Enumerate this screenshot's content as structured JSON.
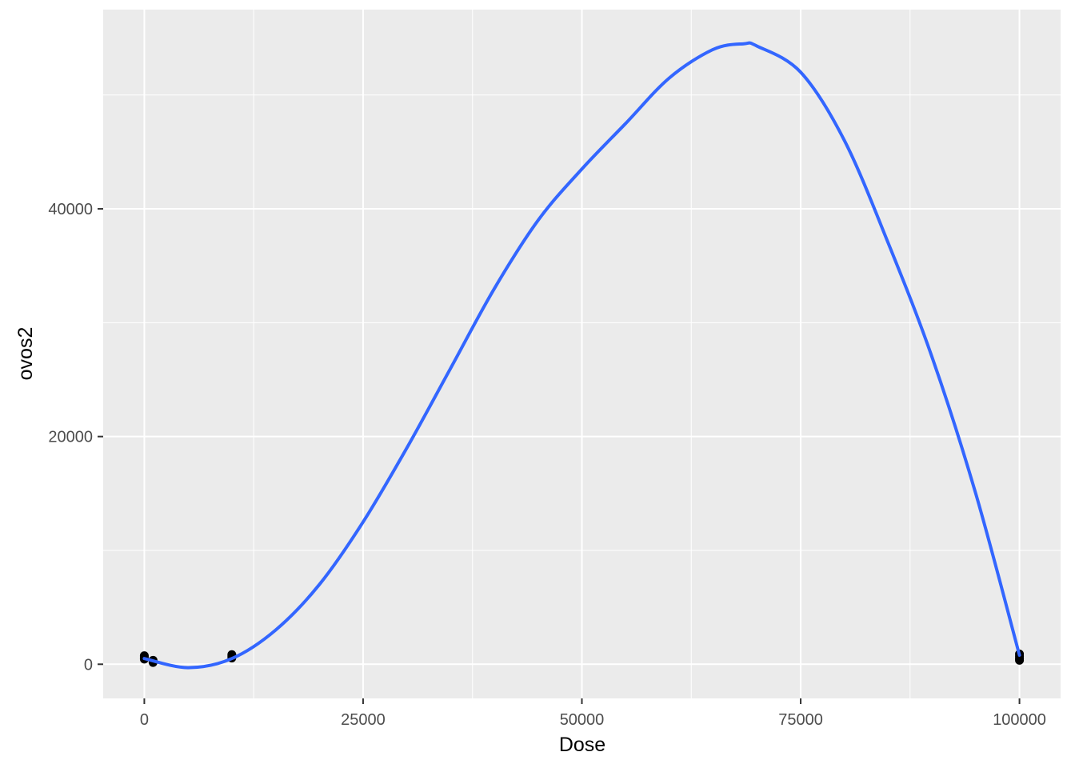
{
  "chart_data": {
    "type": "scatter",
    "title": "",
    "xlabel": "Dose",
    "ylabel": "ovos2",
    "xlim": [
      -4700,
      104700
    ],
    "ylim": [
      -3000,
      57500
    ],
    "x_ticks": [
      0,
      25000,
      50000,
      75000,
      100000
    ],
    "x_tick_labels": [
      "0",
      "25000",
      "50000",
      "75000",
      "100000"
    ],
    "y_ticks": [
      0,
      20000,
      40000
    ],
    "y_tick_labels": [
      "0",
      "20000",
      "40000"
    ],
    "grid": true,
    "legend": "none",
    "colors": {
      "panel": "#ebebeb",
      "grid": "#ffffff",
      "points": "#000000",
      "smooth_line": "#3366ff"
    },
    "points": [
      {
        "x": 0,
        "y": 450
      },
      {
        "x": 0,
        "y": 550
      },
      {
        "x": 0,
        "y": 650
      },
      {
        "x": 0,
        "y": 750
      },
      {
        "x": 1000,
        "y": 150
      },
      {
        "x": 1000,
        "y": 250
      },
      {
        "x": 1000,
        "y": 350
      },
      {
        "x": 10000,
        "y": 550
      },
      {
        "x": 10000,
        "y": 700
      },
      {
        "x": 10000,
        "y": 850
      },
      {
        "x": 100000,
        "y": 350
      },
      {
        "x": 100000,
        "y": 500
      },
      {
        "x": 100000,
        "y": 700
      },
      {
        "x": 100000,
        "y": 900
      }
    ],
    "smooth_line": {
      "x": [
        0,
        5000,
        10000,
        15000,
        20000,
        25000,
        30000,
        35000,
        40000,
        45000,
        50000,
        55000,
        60000,
        65000,
        68500,
        70000,
        75000,
        80000,
        85000,
        90000,
        95000,
        100000
      ],
      "y": [
        500,
        -300,
        500,
        3000,
        7000,
        12500,
        19000,
        26000,
        33000,
        39000,
        43500,
        47500,
        51500,
        54000,
        54500,
        54300,
        52000,
        46000,
        37000,
        27000,
        15000,
        800
      ]
    }
  }
}
